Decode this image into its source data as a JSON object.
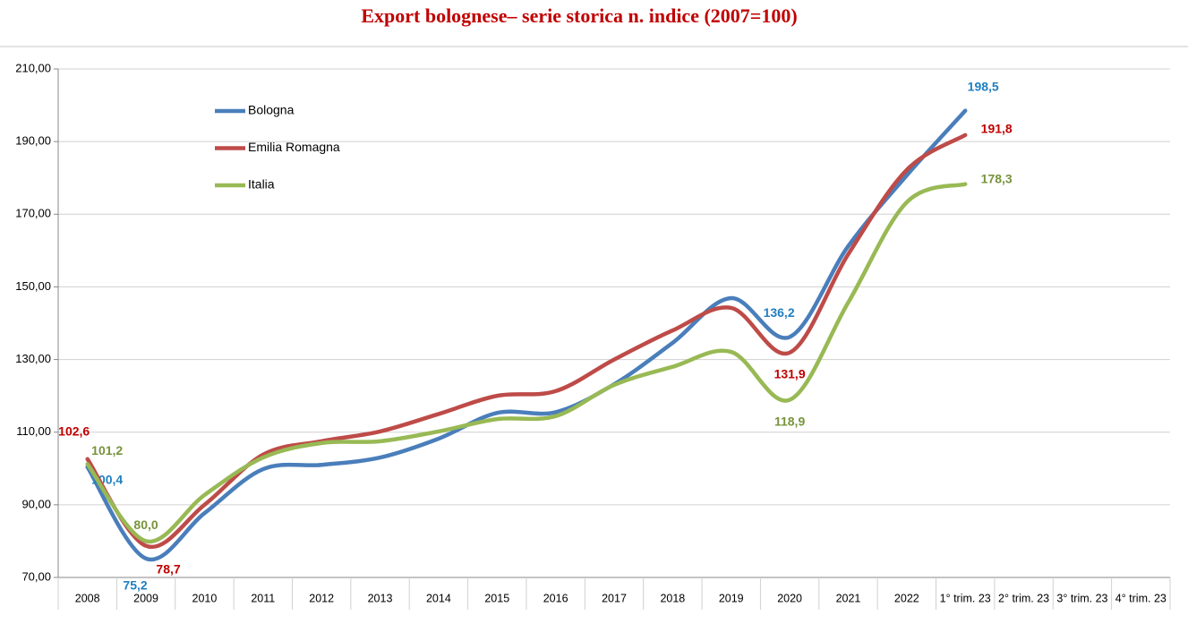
{
  "chart_data": {
    "type": "line",
    "title": "Export bolognese– serie storica n. indice (2007=100)",
    "categories": [
      "2008",
      "2009",
      "2010",
      "2011",
      "2012",
      "2013",
      "2014",
      "2015",
      "2016",
      "2017",
      "2018",
      "2019",
      "2020",
      "2021",
      "2022",
      "1° trim. 23",
      "2° trim. 23",
      "3° trim. 23",
      "4° trim. 23"
    ],
    "series": [
      {
        "name": "Bologna",
        "color": "#4a7ebb",
        "label_color": "#1f7fc0",
        "values": [
          100.4,
          75.2,
          87.7,
          99.8,
          101,
          103,
          108.2,
          115.3,
          115.5,
          123.2,
          134.6,
          146.9,
          136.2,
          161.2,
          180.7,
          198.5,
          null,
          null,
          null
        ],
        "value_labels": [
          "100,4",
          "75,2",
          null,
          null,
          null,
          null,
          null,
          null,
          null,
          null,
          null,
          null,
          "136,2",
          null,
          null,
          "198,5",
          null,
          null,
          null
        ]
      },
      {
        "name": "Emilia Romagna",
        "color": "#be4b48",
        "label_color": "#c00000",
        "values": [
          102.6,
          78.7,
          90,
          103.8,
          107.5,
          110.2,
          115,
          120,
          121.3,
          130,
          138,
          144.2,
          131.9,
          159,
          182.2,
          191.8,
          null,
          null,
          null
        ],
        "value_labels": [
          "102,6",
          "78,7",
          null,
          null,
          null,
          null,
          null,
          null,
          null,
          null,
          null,
          null,
          "131,9",
          null,
          null,
          "191,8",
          null,
          null,
          null
        ]
      },
      {
        "name": "Italia",
        "color": "#98b954",
        "label_color": "#77933c",
        "values": [
          101.2,
          80.0,
          92.7,
          103,
          107,
          107.5,
          110.2,
          113.6,
          114.4,
          123,
          128,
          132.1,
          118.9,
          145.7,
          173.3,
          178.3,
          null,
          null,
          null
        ],
        "value_labels": [
          "101,2",
          "80,0",
          null,
          null,
          null,
          null,
          null,
          null,
          null,
          null,
          null,
          null,
          "118,9",
          null,
          null,
          "178,3",
          null,
          null,
          null
        ]
      }
    ],
    "ylim": [
      70,
      210
    ],
    "yticks": [
      {
        "value": 70,
        "label": "70,00"
      },
      {
        "value": 90,
        "label": "90,00"
      },
      {
        "value": 110,
        "label": "110,00"
      },
      {
        "value": 130,
        "label": "130,00"
      },
      {
        "value": 150,
        "label": "150,00"
      },
      {
        "value": 170,
        "label": "170,00"
      },
      {
        "value": 190,
        "label": "190,00"
      },
      {
        "value": 210,
        "label": "210,00"
      }
    ],
    "grid": true,
    "legend": "upper left"
  }
}
